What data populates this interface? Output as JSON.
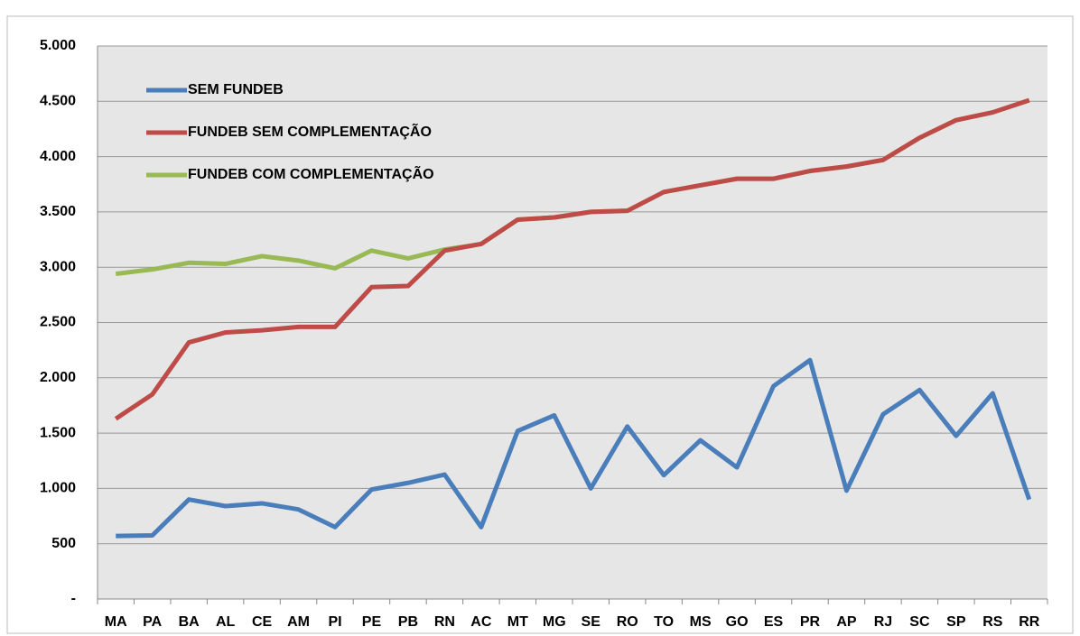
{
  "chart_data": {
    "type": "line",
    "categories": [
      "MA",
      "PA",
      "BA",
      "AL",
      "CE",
      "AM",
      "PI",
      "PE",
      "PB",
      "RN",
      "AC",
      "MT",
      "MG",
      "SE",
      "RO",
      "TO",
      "MS",
      "GO",
      "ES",
      "PR",
      "AP",
      "RJ",
      "SC",
      "SP",
      "RS",
      "RR"
    ],
    "series": [
      {
        "name": "SEM FUNDEB",
        "color": "#4a7ebb",
        "values": [
          570,
          575,
          900,
          840,
          865,
          810,
          650,
          990,
          1050,
          1125,
          650,
          1520,
          1660,
          1000,
          1560,
          1120,
          1435,
          1190,
          1925,
          2160,
          980,
          1670,
          1890,
          1475,
          1860,
          900
        ]
      },
      {
        "name": "FUNDEB SEM COMPLEMENTAÇÃO",
        "color": "#be4b48",
        "values": [
          1630,
          1850,
          2320,
          2410,
          2430,
          2460,
          2460,
          2820,
          2830,
          3150,
          3210,
          3430,
          3450,
          3500,
          3510,
          3680,
          3740,
          3800,
          3800,
          3870,
          3910,
          3970,
          4170,
          4330,
          4400,
          4510
        ]
      },
      {
        "name": "FUNDEB COM COMPLEMENTAÇÃO",
        "color": "#98b954",
        "values": [
          2940,
          2980,
          3040,
          3030,
          3100,
          3060,
          2990,
          3150,
          3080,
          3160,
          3210,
          3430,
          3450,
          3500,
          3510,
          3680,
          3740,
          3800,
          3800,
          3870,
          3910,
          3970,
          4170,
          4330,
          4400,
          4510
        ]
      }
    ],
    "ylim": [
      0,
      5000
    ],
    "yticks": [
      {
        "value": 0,
        "label": "-"
      },
      500,
      {
        "value": 1000,
        "label": "1.000"
      },
      {
        "value": 1500,
        "label": "1.500"
      },
      {
        "value": 2000,
        "label": "2.000"
      },
      {
        "value": 2500,
        "label": "2.500"
      },
      {
        "value": 3000,
        "label": "3.000"
      },
      {
        "value": 3500,
        "label": "3.500"
      },
      {
        "value": 4000,
        "label": "4.000"
      },
      {
        "value": 4500,
        "label": "4.500"
      },
      {
        "value": 5000,
        "label": "5.000"
      }
    ],
    "grid": true
  }
}
